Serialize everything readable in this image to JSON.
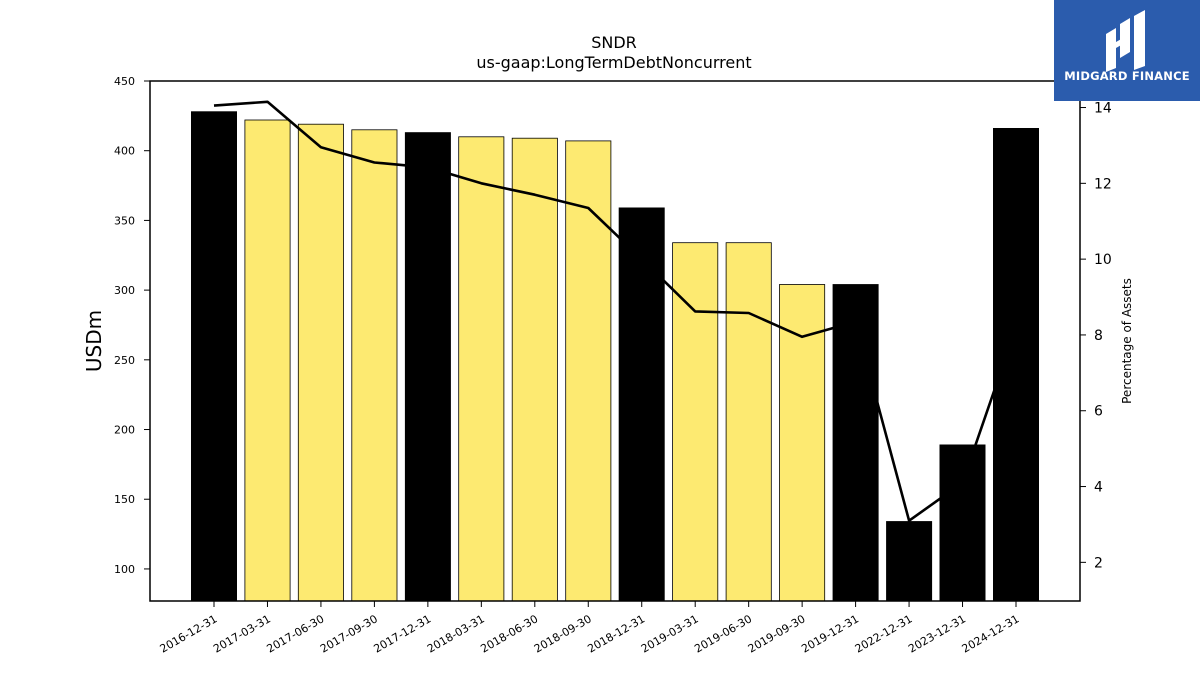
{
  "chart_data": {
    "type": "bar",
    "title": "SNDR",
    "subtitle": "us-gaap:LongTermDebtNoncurrent",
    "ylabel": "USDm",
    "y2label": "Percentage of Assets",
    "ylim": [
      77,
      450
    ],
    "y2lim": [
      0.98,
      14.7
    ],
    "yticks": [
      100,
      150,
      200,
      250,
      300,
      350,
      400,
      450
    ],
    "y2ticks": [
      2,
      4,
      6,
      8,
      10,
      12,
      14
    ],
    "categories": [
      "2016-12-31",
      "2017-03-31",
      "2017-06-30",
      "2017-09-30",
      "2017-12-31",
      "2018-03-31",
      "2018-06-30",
      "2018-09-30",
      "2018-12-31",
      "2019-03-31",
      "2019-06-30",
      "2019-09-30",
      "2019-12-31",
      "2022-12-31",
      "2023-12-31",
      "2024-12-31"
    ],
    "series": [
      {
        "kind": "bar",
        "values": [
          428,
          422,
          419,
          415,
          413,
          410,
          409,
          407,
          359,
          334,
          334,
          304,
          304,
          134,
          189,
          416
        ],
        "annual": [
          true,
          false,
          false,
          false,
          true,
          false,
          false,
          false,
          true,
          false,
          false,
          false,
          true,
          true,
          true,
          true
        ]
      },
      {
        "kind": "line",
        "axis": "right",
        "values": [
          14.05,
          14.15,
          12.95,
          12.55,
          12.42,
          12.0,
          11.7,
          11.35,
          10.0,
          8.62,
          8.58,
          7.95,
          8.35,
          3.1,
          4.1,
          8.2
        ]
      }
    ],
    "colors": {
      "annual_bar": "#000000",
      "quarter_bar": "#fdea71",
      "line": "#000000"
    }
  },
  "logo": {
    "text": "MIDGARD FINANCE"
  }
}
